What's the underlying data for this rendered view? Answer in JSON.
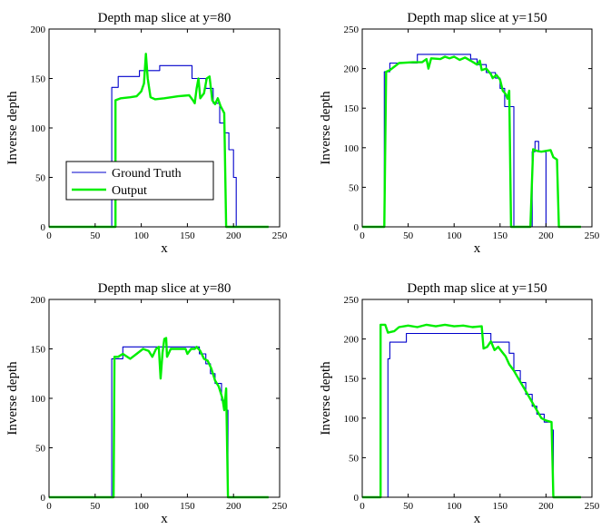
{
  "colors": {
    "ground_truth": "#0000cc",
    "output": "#00ee00",
    "axis": "#000000"
  },
  "chart_data": [
    {
      "type": "line",
      "title": "Depth map slice at y=80",
      "xlabel": "x",
      "ylabel": "Inverse depth",
      "xlim": [
        0,
        250
      ],
      "ylim": [
        0,
        200
      ],
      "xticks": [
        0,
        50,
        100,
        150,
        200,
        250
      ],
      "yticks": [
        0,
        50,
        100,
        150,
        200
      ],
      "legend": {
        "placement": "lower-left",
        "entries": [
          "Ground Truth",
          "Output"
        ]
      },
      "series": [
        {
          "name": "Ground Truth",
          "points": [
            [
              0,
              0
            ],
            [
              66,
              0
            ],
            [
              68,
              0
            ],
            [
              68,
              141
            ],
            [
              75,
              141
            ],
            [
              75,
              152
            ],
            [
              98,
              152
            ],
            [
              98,
              158
            ],
            [
              120,
              158
            ],
            [
              120,
              163
            ],
            [
              155,
              163
            ],
            [
              155,
              150
            ],
            [
              170,
              150
            ],
            [
              170,
              140
            ],
            [
              178,
              140
            ],
            [
              178,
              125
            ],
            [
              185,
              125
            ],
            [
              185,
              105
            ],
            [
              190,
              105
            ],
            [
              190,
              95
            ],
            [
              195,
              95
            ],
            [
              195,
              78
            ],
            [
              200,
              78
            ],
            [
              200,
              50
            ],
            [
              203,
              50
            ],
            [
              203,
              0
            ],
            [
              238,
              0
            ]
          ]
        },
        {
          "name": "Output",
          "points": [
            [
              0,
              0
            ],
            [
              70,
              0
            ],
            [
              72,
              0
            ],
            [
              72,
              128
            ],
            [
              78,
              130
            ],
            [
              88,
              131
            ],
            [
              95,
              132
            ],
            [
              100,
              137
            ],
            [
              103,
              145
            ],
            [
              105,
              175
            ],
            [
              107,
              150
            ],
            [
              110,
              131
            ],
            [
              115,
              129
            ],
            [
              125,
              130
            ],
            [
              140,
              132
            ],
            [
              152,
              133
            ],
            [
              156,
              128
            ],
            [
              158,
              125
            ],
            [
              160,
              140
            ],
            [
              162,
              150
            ],
            [
              164,
              130
            ],
            [
              168,
              135
            ],
            [
              171,
              150
            ],
            [
              174,
              152
            ],
            [
              177,
              128
            ],
            [
              180,
              124
            ],
            [
              183,
              130
            ],
            [
              186,
              122
            ],
            [
              190,
              115
            ],
            [
              192,
              0
            ],
            [
              238,
              0
            ]
          ]
        }
      ]
    },
    {
      "type": "line",
      "title": "Depth map slice at y=150",
      "xlabel": "x",
      "ylabel": "Inverse depth",
      "xlim": [
        0,
        250
      ],
      "ylim": [
        0,
        250
      ],
      "xticks": [
        0,
        50,
        100,
        150,
        200,
        250
      ],
      "yticks": [
        0,
        50,
        100,
        150,
        200,
        250
      ],
      "series": [
        {
          "name": "Ground Truth",
          "points": [
            [
              0,
              0
            ],
            [
              24,
              0
            ],
            [
              24,
              196
            ],
            [
              30,
              196
            ],
            [
              30,
              207
            ],
            [
              60,
              207
            ],
            [
              60,
              218
            ],
            [
              118,
              218
            ],
            [
              118,
              212
            ],
            [
              125,
              212
            ],
            [
              125,
              205
            ],
            [
              135,
              205
            ],
            [
              135,
              195
            ],
            [
              145,
              195
            ],
            [
              145,
              188
            ],
            [
              150,
              188
            ],
            [
              150,
              175
            ],
            [
              155,
              175
            ],
            [
              155,
              152
            ],
            [
              165,
              152
            ],
            [
              165,
              0
            ],
            [
              185,
              0
            ],
            [
              185,
              95
            ],
            [
              188,
              95
            ],
            [
              188,
              108
            ],
            [
              192,
              108
            ],
            [
              192,
              95
            ],
            [
              200,
              95
            ],
            [
              200,
              0
            ],
            [
              238,
              0
            ]
          ]
        },
        {
          "name": "Output",
          "points": [
            [
              0,
              0
            ],
            [
              22,
              0
            ],
            [
              24,
              0
            ],
            [
              26,
              196
            ],
            [
              30,
              198
            ],
            [
              40,
              207
            ],
            [
              55,
              208
            ],
            [
              65,
              208
            ],
            [
              70,
              212
            ],
            [
              72,
              200
            ],
            [
              75,
              213
            ],
            [
              85,
              212
            ],
            [
              90,
              215
            ],
            [
              95,
              213
            ],
            [
              100,
              215
            ],
            [
              106,
              211
            ],
            [
              112,
              214
            ],
            [
              118,
              210
            ],
            [
              125,
              205
            ],
            [
              128,
              210
            ],
            [
              130,
              198
            ],
            [
              135,
              200
            ],
            [
              140,
              193
            ],
            [
              142,
              188
            ],
            [
              146,
              192
            ],
            [
              150,
              186
            ],
            [
              153,
              172
            ],
            [
              156,
              168
            ],
            [
              158,
              162
            ],
            [
              160,
              172
            ],
            [
              162,
              0
            ],
            [
              183,
              0
            ],
            [
              186,
              98
            ],
            [
              190,
              96
            ],
            [
              195,
              95
            ],
            [
              205,
              97
            ],
            [
              208,
              88
            ],
            [
              212,
              85
            ],
            [
              214,
              0
            ],
            [
              238,
              0
            ]
          ]
        }
      ]
    },
    {
      "type": "line",
      "title": "Depth map slice at y=80",
      "xlabel": "x",
      "ylabel": "Inverse depth",
      "xlim": [
        0,
        250
      ],
      "ylim": [
        0,
        200
      ],
      "xticks": [
        0,
        50,
        100,
        150,
        200,
        250
      ],
      "yticks": [
        0,
        50,
        100,
        150,
        200
      ],
      "series": [
        {
          "name": "Ground Truth",
          "points": [
            [
              0,
              0
            ],
            [
              68,
              0
            ],
            [
              68,
              140
            ],
            [
              80,
              140
            ],
            [
              80,
              152
            ],
            [
              163,
              152
            ],
            [
              163,
              145
            ],
            [
              170,
              145
            ],
            [
              170,
              135
            ],
            [
              175,
              135
            ],
            [
              175,
              125
            ],
            [
              180,
              125
            ],
            [
              180,
              115
            ],
            [
              187,
              115
            ],
            [
              187,
              98
            ],
            [
              192,
              98
            ],
            [
              192,
              88
            ],
            [
              194,
              88
            ],
            [
              194,
              0
            ],
            [
              238,
              0
            ]
          ]
        },
        {
          "name": "Output",
          "points": [
            [
              0,
              0
            ],
            [
              68,
              0
            ],
            [
              70,
              0
            ],
            [
              71,
              142
            ],
            [
              75,
              142
            ],
            [
              80,
              145
            ],
            [
              88,
              140
            ],
            [
              95,
              145
            ],
            [
              102,
              150
            ],
            [
              108,
              148
            ],
            [
              112,
              142
            ],
            [
              116,
              150
            ],
            [
              119,
              152
            ],
            [
              121,
              120
            ],
            [
              123,
              146
            ],
            [
              125,
              160
            ],
            [
              127,
              161
            ],
            [
              128,
              142
            ],
            [
              132,
              150
            ],
            [
              140,
              150
            ],
            [
              148,
              150
            ],
            [
              150,
              145
            ],
            [
              154,
              150
            ],
            [
              158,
              150
            ],
            [
              160,
              152
            ],
            [
              164,
              148
            ],
            [
              168,
              140
            ],
            [
              172,
              138
            ],
            [
              176,
              130
            ],
            [
              180,
              118
            ],
            [
              184,
              112
            ],
            [
              188,
              100
            ],
            [
              190,
              88
            ],
            [
              192,
              110
            ],
            [
              194,
              0
            ],
            [
              238,
              0
            ]
          ]
        }
      ]
    },
    {
      "type": "line",
      "title": "Depth map slice at y=150",
      "xlabel": "x",
      "ylabel": "Inverse depth",
      "xlim": [
        0,
        250
      ],
      "ylim": [
        0,
        250
      ],
      "xticks": [
        0,
        50,
        100,
        150,
        200,
        250
      ],
      "yticks": [
        0,
        50,
        100,
        150,
        200,
        250
      ],
      "series": [
        {
          "name": "Ground Truth",
          "points": [
            [
              0,
              0
            ],
            [
              28,
              0
            ],
            [
              28,
              175
            ],
            [
              30,
              175
            ],
            [
              30,
              196
            ],
            [
              48,
              196
            ],
            [
              48,
              207
            ],
            [
              140,
              207
            ],
            [
              140,
              196
            ],
            [
              160,
              196
            ],
            [
              160,
              182
            ],
            [
              165,
              182
            ],
            [
              165,
              160
            ],
            [
              172,
              160
            ],
            [
              172,
              145
            ],
            [
              178,
              145
            ],
            [
              178,
              130
            ],
            [
              185,
              130
            ],
            [
              185,
              115
            ],
            [
              190,
              115
            ],
            [
              190,
              105
            ],
            [
              198,
              105
            ],
            [
              198,
              95
            ],
            [
              206,
              95
            ],
            [
              206,
              85
            ],
            [
              208,
              85
            ],
            [
              208,
              0
            ],
            [
              238,
              0
            ]
          ]
        },
        {
          "name": "Output",
          "points": [
            [
              0,
              0
            ],
            [
              18,
              0
            ],
            [
              20,
              0
            ],
            [
              20,
              218
            ],
            [
              25,
              218
            ],
            [
              28,
              208
            ],
            [
              35,
              210
            ],
            [
              40,
              215
            ],
            [
              50,
              217
            ],
            [
              60,
              215
            ],
            [
              70,
              218
            ],
            [
              80,
              216
            ],
            [
              90,
              218
            ],
            [
              100,
              216
            ],
            [
              110,
              217
            ],
            [
              120,
              215
            ],
            [
              130,
              216
            ],
            [
              132,
              188
            ],
            [
              136,
              190
            ],
            [
              140,
              197
            ],
            [
              144,
              186
            ],
            [
              148,
              190
            ],
            [
              152,
              184
            ],
            [
              156,
              178
            ],
            [
              160,
              168
            ],
            [
              165,
              160
            ],
            [
              170,
              150
            ],
            [
              175,
              140
            ],
            [
              180,
              130
            ],
            [
              185,
              120
            ],
            [
              190,
              110
            ],
            [
              195,
              100
            ],
            [
              200,
              97
            ],
            [
              206,
              95
            ],
            [
              208,
              0
            ],
            [
              238,
              0
            ]
          ]
        }
      ]
    }
  ]
}
